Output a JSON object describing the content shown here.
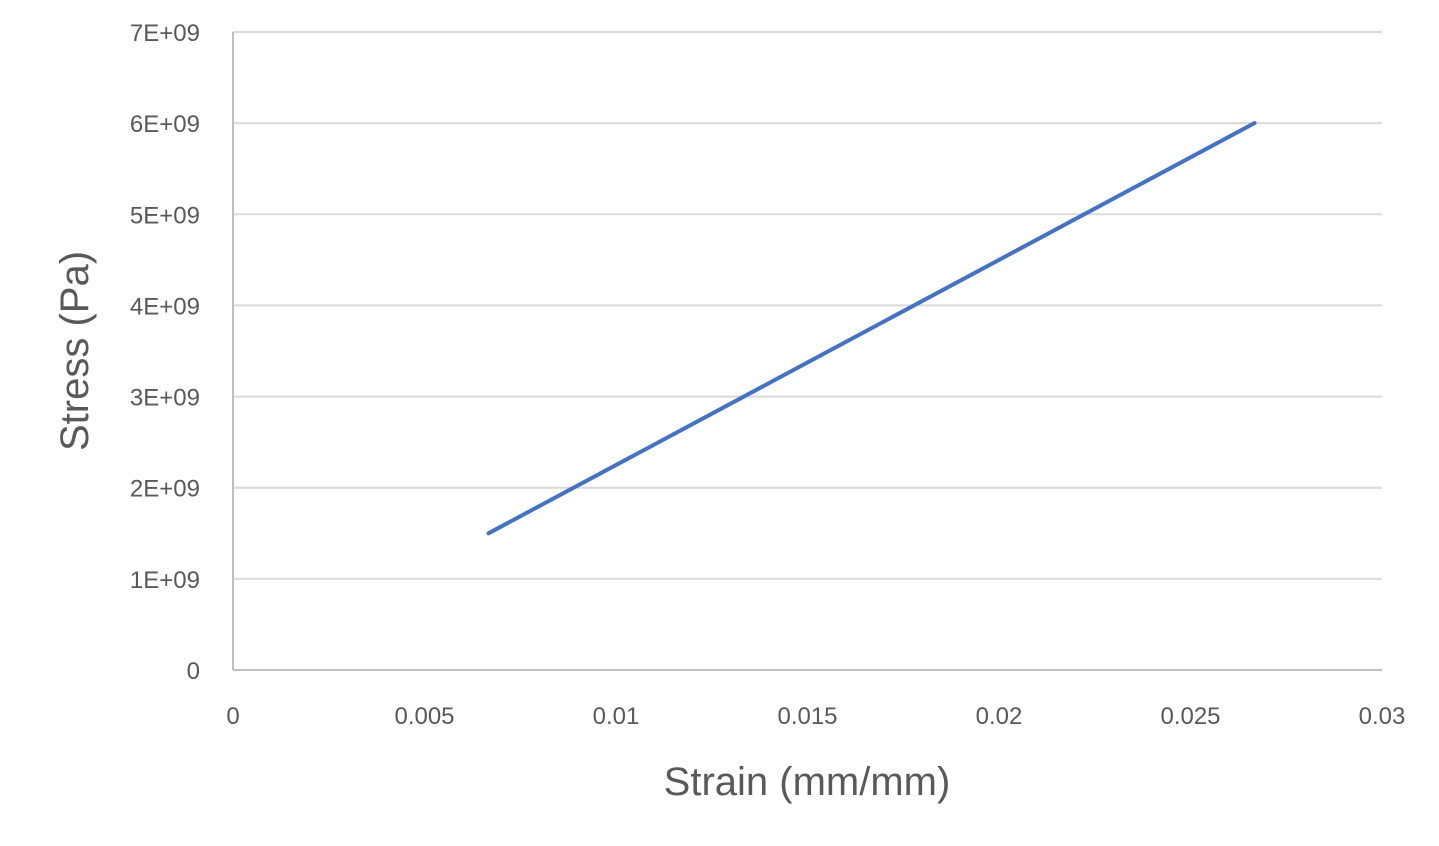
{
  "chart_data": {
    "type": "line",
    "title": "",
    "xlabel": "Strain (mm/mm)",
    "ylabel": "Stress (Pa)",
    "xlim": [
      0,
      0.03
    ],
    "ylim": [
      0,
      7000000000
    ],
    "x_ticks": [
      {
        "value": 0,
        "label": "0"
      },
      {
        "value": 0.005,
        "label": "0.005"
      },
      {
        "value": 0.01,
        "label": "0.01"
      },
      {
        "value": 0.015,
        "label": "0.015"
      },
      {
        "value": 0.02,
        "label": "0.02"
      },
      {
        "value": 0.025,
        "label": "0.025"
      },
      {
        "value": 0.03,
        "label": "0.03"
      }
    ],
    "y_ticks": [
      {
        "value": 0,
        "label": "0"
      },
      {
        "value": 1000000000,
        "label": "1E+09"
      },
      {
        "value": 2000000000,
        "label": "2E+09"
      },
      {
        "value": 3000000000,
        "label": "3E+09"
      },
      {
        "value": 4000000000,
        "label": "4E+09"
      },
      {
        "value": 5000000000,
        "label": "5E+09"
      },
      {
        "value": 6000000000,
        "label": "6E+09"
      },
      {
        "value": 7000000000,
        "label": "7E+09"
      }
    ],
    "grid": true,
    "legend": "none",
    "series": [
      {
        "color": "#4472C4",
        "x": [
          0.00667,
          0.02667
        ],
        "y": [
          1500000000,
          6000000000
        ]
      }
    ]
  },
  "colors": {
    "series": "#4472C4",
    "grid": "#D9D9D9",
    "axis": "#BFBFBF",
    "text": "#595959"
  }
}
